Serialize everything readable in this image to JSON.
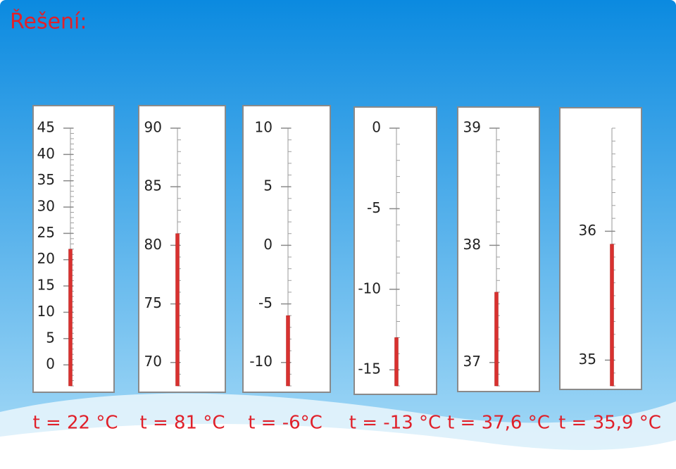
{
  "title": "Řešení:",
  "chart_data": [
    {
      "type": "thermometer",
      "values": [
        22
      ],
      "value_labels": [
        "t = 22 °C"
      ],
      "color": "#d8312f",
      "ylim": [
        -4,
        45
      ],
      "yticks": [
        0,
        5,
        10,
        15,
        20,
        25,
        30,
        35,
        40,
        45
      ]
    },
    {
      "type": "thermometer",
      "values": [
        81
      ],
      "value_labels": [
        "t = 81 °C"
      ],
      "color": "#d8312f",
      "ylim": [
        68,
        90
      ],
      "yticks": [
        70,
        75,
        80,
        85,
        90
      ]
    },
    {
      "type": "thermometer",
      "values": [
        -6
      ],
      "value_labels": [
        "t = -6°C"
      ],
      "color": "#d8312f",
      "ylim": [
        -12,
        10
      ],
      "yticks": [
        -10,
        -5,
        0,
        5,
        10
      ]
    },
    {
      "type": "thermometer",
      "values": [
        -13
      ],
      "value_labels": [
        "t = -13 °C"
      ],
      "color": "#d8312f",
      "ylim": [
        -16,
        0
      ],
      "yticks": [
        -15,
        -10,
        -5,
        0
      ]
    },
    {
      "type": "thermometer",
      "values": [
        37.6
      ],
      "value_labels": [
        "t = 37,6 °C"
      ],
      "color": "#d8312f",
      "ylim": [
        36.8,
        39
      ],
      "yticks": [
        37,
        38,
        39
      ]
    },
    {
      "type": "thermometer",
      "values": [
        35.9
      ],
      "value_labels": [
        "t = 35,9 °C"
      ],
      "color": "#d8312f",
      "ylim": [
        34.8,
        36.8
      ],
      "yticks": [
        35,
        36
      ]
    }
  ]
}
